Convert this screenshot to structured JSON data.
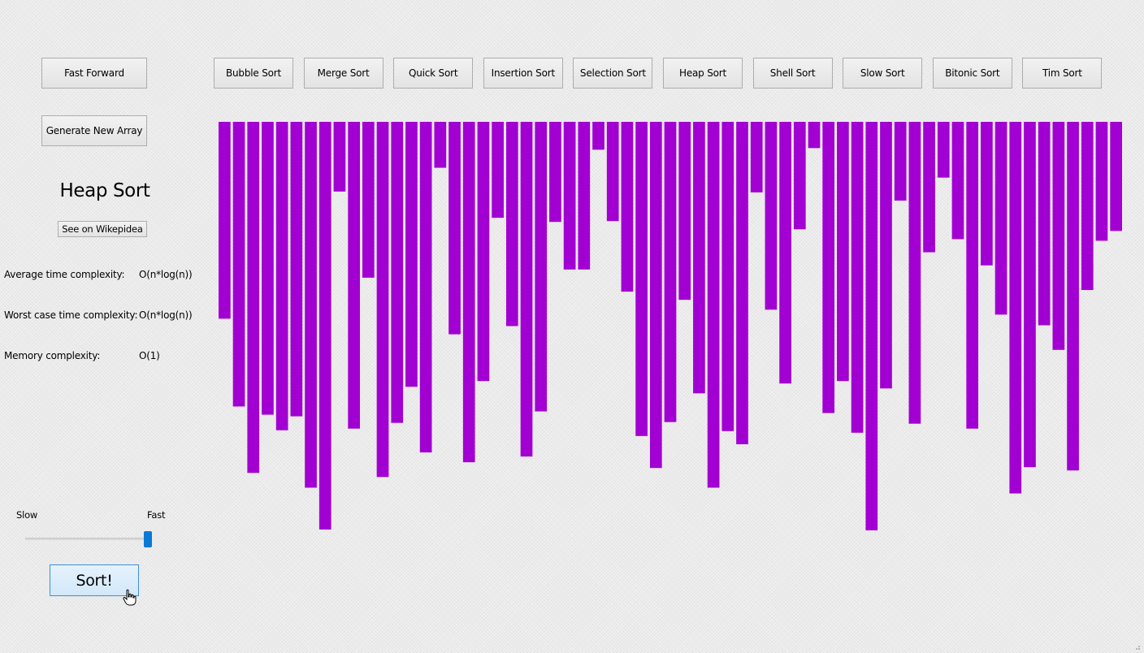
{
  "controls": {
    "fast_forward": "Fast Forward",
    "generate": "Generate New Array"
  },
  "algorithms": [
    {
      "name": "bubble-sort",
      "label": "Bubble Sort"
    },
    {
      "name": "merge-sort",
      "label": "Merge Sort"
    },
    {
      "name": "quick-sort",
      "label": "Quick Sort"
    },
    {
      "name": "insertion-sort",
      "label": "Insertion Sort"
    },
    {
      "name": "selection-sort",
      "label": "Selection Sort"
    },
    {
      "name": "heap-sort",
      "label": "Heap Sort"
    },
    {
      "name": "shell-sort",
      "label": "Shell Sort"
    },
    {
      "name": "slow-sort",
      "label": "Slow Sort"
    },
    {
      "name": "bitonic-sort",
      "label": "Bitonic Sort"
    },
    {
      "name": "tim-sort",
      "label": "Tim Sort"
    }
  ],
  "selected": {
    "title": "Heap Sort",
    "wiki_label": "See on Wikepidea",
    "avg_label": "Average time complexity:",
    "avg_value": "O(n*log(n))",
    "worst_label": "Worst case time complexity:",
    "worst_value": "O(n*log(n))",
    "memory_label": "Memory complexity:",
    "memory_value": "O(1)"
  },
  "speed": {
    "slow_label": "Slow",
    "fast_label": "Fast",
    "value": 1.0
  },
  "sort_label": "Sort!",
  "colors": {
    "bar": "#a200d3",
    "accent": "#0a78d7"
  },
  "chart_data": {
    "type": "bar",
    "values": [
      240,
      347,
      428,
      357,
      376,
      359,
      446,
      497,
      85,
      374,
      190,
      433,
      367,
      323,
      403,
      56,
      259,
      415,
      316,
      117,
      249,
      408,
      353,
      122,
      180,
      180,
      34,
      121,
      207,
      383,
      422,
      366,
      217,
      331,
      446,
      377,
      393,
      86,
      229,
      319,
      131,
      32,
      355,
      316,
      379,
      498,
      325,
      96,
      368,
      159,
      68,
      143,
      374,
      175,
      235,
      453,
      421,
      248,
      278,
      425,
      205,
      145,
      133
    ],
    "ylim": [
      0,
      500
    ]
  }
}
